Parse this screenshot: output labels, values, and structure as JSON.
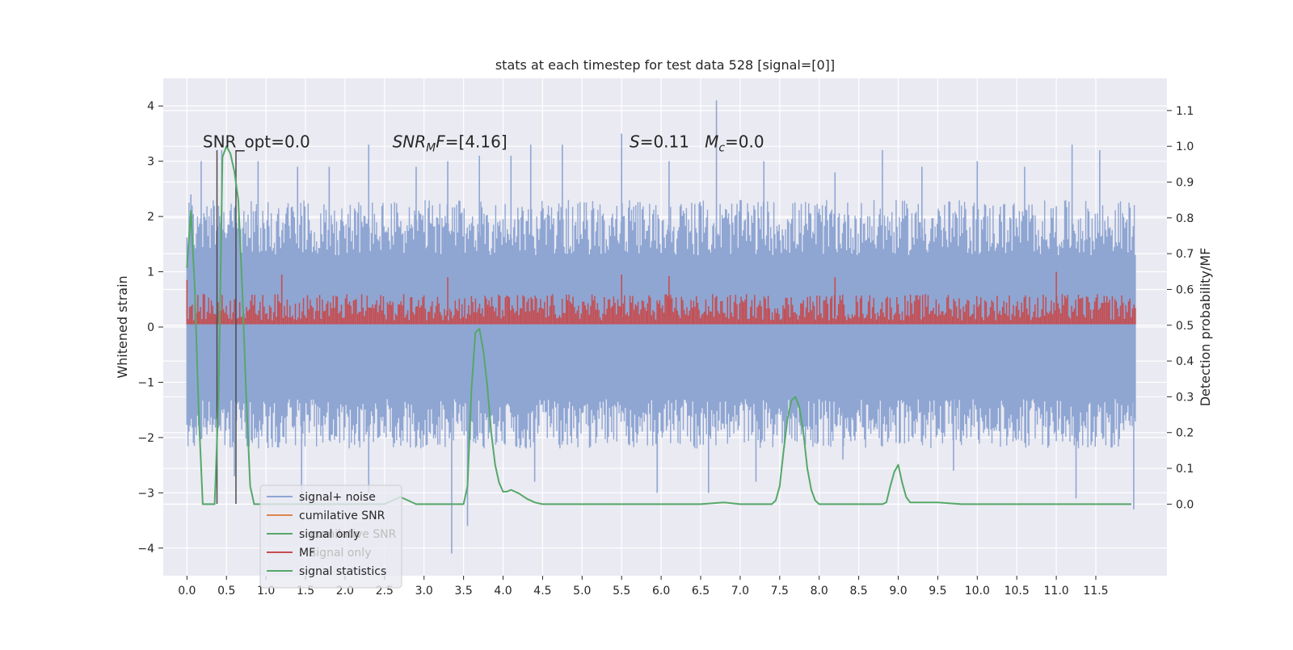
{
  "chart_data": {
    "type": "line",
    "title": "stats at each timestep for test data 528 [signal=[0]]",
    "ylabel_left": "Whitened strain",
    "ylabel_right": "Detection probability/MF",
    "xlim": [
      -0.3,
      12.4
    ],
    "ylim_left": [
      -4.5,
      4.5
    ],
    "ylim_right": [
      -0.2,
      1.19
    ],
    "x_ticks": [
      0.0,
      0.5,
      1.0,
      1.5,
      2.0,
      2.5,
      3.0,
      3.5,
      4.0,
      4.5,
      5.0,
      5.5,
      6.0,
      6.5,
      7.0,
      7.5,
      8.0,
      8.5,
      9.0,
      9.5,
      10.0,
      10.5,
      11.0,
      11.5
    ],
    "x_tick_labels": [
      "0.0",
      "0.5",
      "1.0",
      "1.5",
      "2.0",
      "2.5",
      "3.0",
      "3.5",
      "4.0",
      "4.5",
      "5.0",
      "5.5",
      "6.0",
      "6.5",
      "7.0",
      "7.5",
      "8.0",
      "8.5",
      "9.0",
      "9.5",
      "10.0",
      "10.5",
      "11.0",
      "11.5"
    ],
    "y_left_ticks": [
      -4,
      -3,
      -2,
      -1,
      0,
      1,
      2,
      3,
      4
    ],
    "y_left_tick_labels": [
      "−4",
      "−3",
      "−2",
      "−1",
      "0",
      "1",
      "2",
      "3",
      "4"
    ],
    "y_right_ticks": [
      0.0,
      0.1,
      0.2,
      0.3,
      0.4,
      0.5,
      0.6,
      0.7,
      0.8,
      0.9,
      1.0,
      1.1
    ],
    "y_right_tick_labels": [
      "0.0",
      "0.1",
      "0.2",
      "0.3",
      "0.4",
      "0.5",
      "0.6",
      "0.7",
      "0.8",
      "0.9",
      "1.0",
      "1.1"
    ],
    "grid": true,
    "annotations": [
      {
        "x": 0.2,
        "y": 3.25,
        "text": "SNR_opt=0.0"
      },
      {
        "x": 2.6,
        "y": 3.25,
        "parts": [
          {
            "t": "SNR",
            "style": "italic"
          },
          {
            "t": "M",
            "style": "sub"
          },
          {
            "t": "F",
            "style": "italic"
          },
          {
            "t": "=[4.16]",
            "style": "normal"
          }
        ]
      },
      {
        "x": 5.6,
        "y": 3.25,
        "parts": [
          {
            "t": "S",
            "style": "italic"
          },
          {
            "t": "=0.11   ",
            "style": "normal"
          },
          {
            "t": "M",
            "style": "italic"
          },
          {
            "t": "c",
            "style": "sub"
          },
          {
            "t": "=0.0",
            "style": "normal"
          }
        ]
      }
    ],
    "vlines": [
      {
        "x": 0.38,
        "y0": -3.2,
        "y1": 3.2
      },
      {
        "x": 0.62,
        "y0": -3.2,
        "y1": 3.2
      }
    ],
    "noise_band": {
      "name": "signal+ noise",
      "x_range": [
        0.0,
        12.0
      ],
      "color": "#8fa6d3",
      "typical_upper": 1.9,
      "typical_lower": -1.7,
      "band_top": 1.3,
      "band_bottom": -1.3,
      "spikes": [
        {
          "x": 0.05,
          "y": 2.4
        },
        {
          "x": 0.18,
          "y": 3.0
        },
        {
          "x": 0.44,
          "y": 3.2
        },
        {
          "x": 0.9,
          "y": 3.0
        },
        {
          "x": 1.4,
          "y": 2.9
        },
        {
          "x": 1.8,
          "y": 2.9
        },
        {
          "x": 2.3,
          "y": 3.3
        },
        {
          "x": 2.9,
          "y": 2.9
        },
        {
          "x": 3.3,
          "y": 3.0
        },
        {
          "x": 3.7,
          "y": 3.1
        },
        {
          "x": 4.1,
          "y": 3.1
        },
        {
          "x": 4.35,
          "y": 3.3
        },
        {
          "x": 4.75,
          "y": 3.3
        },
        {
          "x": 5.5,
          "y": 3.5
        },
        {
          "x": 6.1,
          "y": 3.0
        },
        {
          "x": 6.7,
          "y": 4.1
        },
        {
          "x": 7.3,
          "y": 3.0
        },
        {
          "x": 8.2,
          "y": 2.8
        },
        {
          "x": 8.8,
          "y": 3.2
        },
        {
          "x": 9.3,
          "y": 2.9
        },
        {
          "x": 10.0,
          "y": 3.0
        },
        {
          "x": 10.6,
          "y": 2.9
        },
        {
          "x": 11.2,
          "y": 3.3
        },
        {
          "x": 11.55,
          "y": 3.2
        },
        {
          "x": 0.6,
          "y": -2.7
        },
        {
          "x": 1.45,
          "y": -3.2
        },
        {
          "x": 2.3,
          "y": -3.0
        },
        {
          "x": 3.35,
          "y": -4.1
        },
        {
          "x": 3.55,
          "y": -3.6
        },
        {
          "x": 4.4,
          "y": -2.8
        },
        {
          "x": 5.95,
          "y": -3.0
        },
        {
          "x": 6.6,
          "y": -3.0
        },
        {
          "x": 7.2,
          "y": -2.8
        },
        {
          "x": 8.3,
          "y": -2.4
        },
        {
          "x": 9.7,
          "y": -2.6
        },
        {
          "x": 11.25,
          "y": -3.1
        },
        {
          "x": 11.98,
          "y": -3.3
        }
      ]
    },
    "series": [
      {
        "name": "MF",
        "color": "#c44e52",
        "axis": "left",
        "x_range": [
          0.0,
          12.0
        ],
        "base": 0.0,
        "typical_top": 0.6,
        "peaks": [
          {
            "x": 0.0,
            "y": 0.85
          },
          {
            "x": 1.2,
            "y": 0.95
          },
          {
            "x": 3.3,
            "y": 0.9
          },
          {
            "x": 5.5,
            "y": 0.95
          },
          {
            "x": 6.1,
            "y": 0.92
          },
          {
            "x": 8.2,
            "y": 0.9
          },
          {
            "x": 11.0,
            "y": 1.0
          }
        ]
      },
      {
        "name": "signal statistics",
        "color": "#55a868",
        "axis": "right",
        "x": [
          0.0,
          0.05,
          0.1,
          0.15,
          0.2,
          0.25,
          0.3,
          0.35,
          0.4,
          0.45,
          0.5,
          0.55,
          0.6,
          0.65,
          0.7,
          0.75,
          0.8,
          0.85,
          0.9,
          0.95,
          1.0,
          1.5,
          2.0,
          2.3,
          2.5,
          2.6,
          2.7,
          2.8,
          2.9,
          3.0,
          3.1,
          3.2,
          3.3,
          3.4,
          3.5,
          3.55,
          3.6,
          3.65,
          3.7,
          3.75,
          3.8,
          3.85,
          3.9,
          3.95,
          4.0,
          4.05,
          4.1,
          4.15,
          4.2,
          4.3,
          4.4,
          4.5,
          4.6,
          4.8,
          5.0,
          5.5,
          6.0,
          6.5,
          6.8,
          7.0,
          7.3,
          7.4,
          7.45,
          7.5,
          7.55,
          7.6,
          7.65,
          7.7,
          7.75,
          7.8,
          7.85,
          7.9,
          7.95,
          8.0,
          8.1,
          8.5,
          8.7,
          8.8,
          8.85,
          8.9,
          8.95,
          9.0,
          9.05,
          9.1,
          9.15,
          9.2,
          9.3,
          9.5,
          9.8,
          10.0,
          10.2,
          10.5,
          11.0,
          11.5,
          11.95
        ],
        "y": [
          0.66,
          0.82,
          0.6,
          0.25,
          0.0,
          0.0,
          0.0,
          0.0,
          0.3,
          0.97,
          1.0,
          0.98,
          0.93,
          0.85,
          0.6,
          0.3,
          0.05,
          0.0,
          0.0,
          0.0,
          0.0,
          0.0,
          0.0,
          0.0,
          0.0,
          0.01,
          0.02,
          0.01,
          0.0,
          0.0,
          0.0,
          0.0,
          0.0,
          0.0,
          0.0,
          0.05,
          0.32,
          0.48,
          0.49,
          0.43,
          0.33,
          0.2,
          0.11,
          0.06,
          0.035,
          0.035,
          0.04,
          0.035,
          0.03,
          0.015,
          0.005,
          0.0,
          0.0,
          0.0,
          0.0,
          0.0,
          0.0,
          0.0,
          0.005,
          0.0,
          0.0,
          0.0,
          0.01,
          0.05,
          0.15,
          0.24,
          0.29,
          0.3,
          0.27,
          0.2,
          0.1,
          0.04,
          0.01,
          0.0,
          0.0,
          0.0,
          0.0,
          0.0,
          0.005,
          0.05,
          0.09,
          0.11,
          0.06,
          0.02,
          0.005,
          0.005,
          0.005,
          0.005,
          0.0,
          0.0,
          0.0,
          0.0,
          0.0,
          0.0,
          0.0
        ]
      }
    ],
    "legend": {
      "placement": "lower-left",
      "entries": [
        {
          "label": "signal+ noise",
          "color": "#8fa6d3"
        },
        {
          "label": "cumilative SNR",
          "color": "#dd8452"
        },
        {
          "label": "signal only",
          "color": "#55a868"
        },
        {
          "label": "MF",
          "color": "#c44e52"
        },
        {
          "label": "signal statistics",
          "color": "#55a868"
        }
      ],
      "ghost_labels": [
        "cumilative SNR",
        "signal only"
      ]
    }
  },
  "colors": {
    "plot_background": "#eaeaf2",
    "grid": "#ffffff",
    "vline": "#4a4a4a"
  }
}
